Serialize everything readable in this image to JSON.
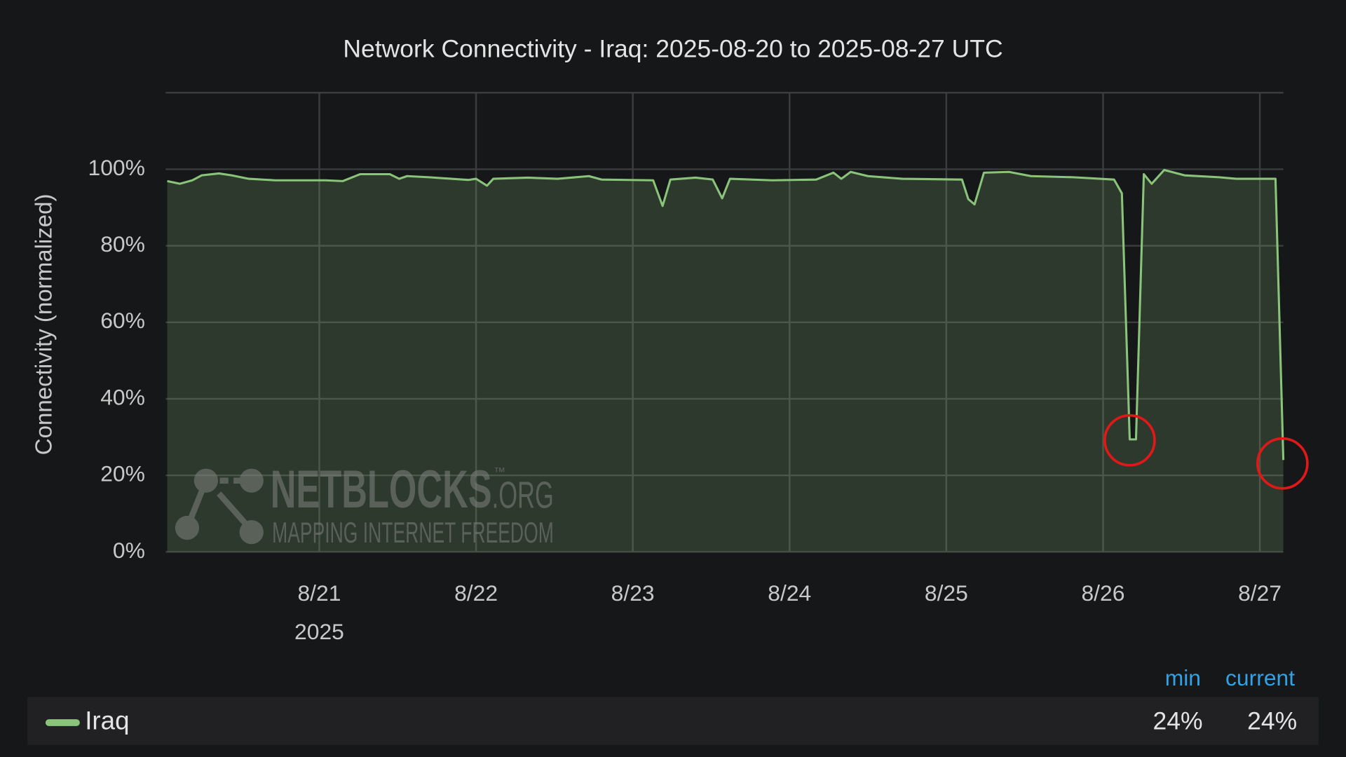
{
  "chart_data": {
    "type": "line",
    "title": "Network Connectivity - Iraq: 2025-08-20 to 2025-08-27 UTC",
    "y_label": "Connectivity (normalized)",
    "x_year_label": "2025",
    "xlim": [
      20.02,
      27.15
    ],
    "xticks": [
      {
        "value": 21,
        "label": "8/21"
      },
      {
        "value": 22,
        "label": "8/22"
      },
      {
        "value": 23,
        "label": "8/23"
      },
      {
        "value": 24,
        "label": "8/24"
      },
      {
        "value": 25,
        "label": "8/25"
      },
      {
        "value": 26,
        "label": "8/26"
      },
      {
        "value": 27,
        "label": "8/27"
      }
    ],
    "ylim": [
      0,
      120
    ],
    "yticks": [
      {
        "value": 0,
        "label": "0%"
      },
      {
        "value": 20,
        "label": "20%"
      },
      {
        "value": 40,
        "label": "40%"
      },
      {
        "value": 60,
        "label": "60%"
      },
      {
        "value": 80,
        "label": "80%"
      },
      {
        "value": 100,
        "label": "100%"
      }
    ],
    "grid": true,
    "x": [
      20.03,
      20.11,
      20.19,
      20.25,
      20.36,
      20.44,
      20.55,
      20.72,
      21.04,
      21.15,
      21.26,
      21.45,
      21.51,
      21.56,
      21.7,
      21.95,
      22.0,
      22.07,
      22.11,
      22.33,
      22.52,
      22.72,
      22.8,
      23.13,
      23.19,
      23.24,
      23.4,
      23.51,
      23.57,
      23.62,
      23.89,
      24.17,
      24.28,
      24.33,
      24.39,
      24.5,
      24.72,
      25.1,
      25.14,
      25.18,
      25.24,
      25.4,
      25.54,
      25.81,
      26.07,
      26.12,
      26.17,
      26.21,
      26.26,
      26.31,
      26.39,
      26.52,
      26.74,
      26.85,
      27.1,
      27.15
    ],
    "series": [
      {
        "name": "Iraq",
        "color": "#8ac47a",
        "values": [
          96.9,
          96.2,
          97.1,
          98.4,
          98.9,
          98.4,
          97.5,
          97.1,
          97.1,
          96.9,
          98.7,
          98.7,
          97.5,
          98.2,
          97.9,
          97.2,
          97.5,
          95.7,
          97.5,
          97.8,
          97.5,
          98.2,
          97.3,
          97.1,
          90.4,
          97.3,
          97.8,
          97.3,
          92.4,
          97.5,
          97.1,
          97.3,
          99.1,
          97.5,
          99.3,
          98.2,
          97.5,
          97.3,
          92.2,
          90.8,
          99.1,
          99.3,
          98.2,
          97.9,
          97.3,
          93.7,
          29.4,
          29.4,
          98.7,
          96.2,
          99.8,
          98.4,
          97.9,
          97.5,
          97.5,
          24
        ]
      }
    ],
    "legend_stats": {
      "columns": [
        "min",
        "current"
      ],
      "values": [
        24,
        24
      ],
      "value_labels": [
        "24%",
        "24%"
      ]
    },
    "watermark": {
      "name": "NETBLOCKS",
      "mark": "™",
      "suffix": ".ORG",
      "tagline": "MAPPING INTERNET FREEDOM"
    }
  }
}
